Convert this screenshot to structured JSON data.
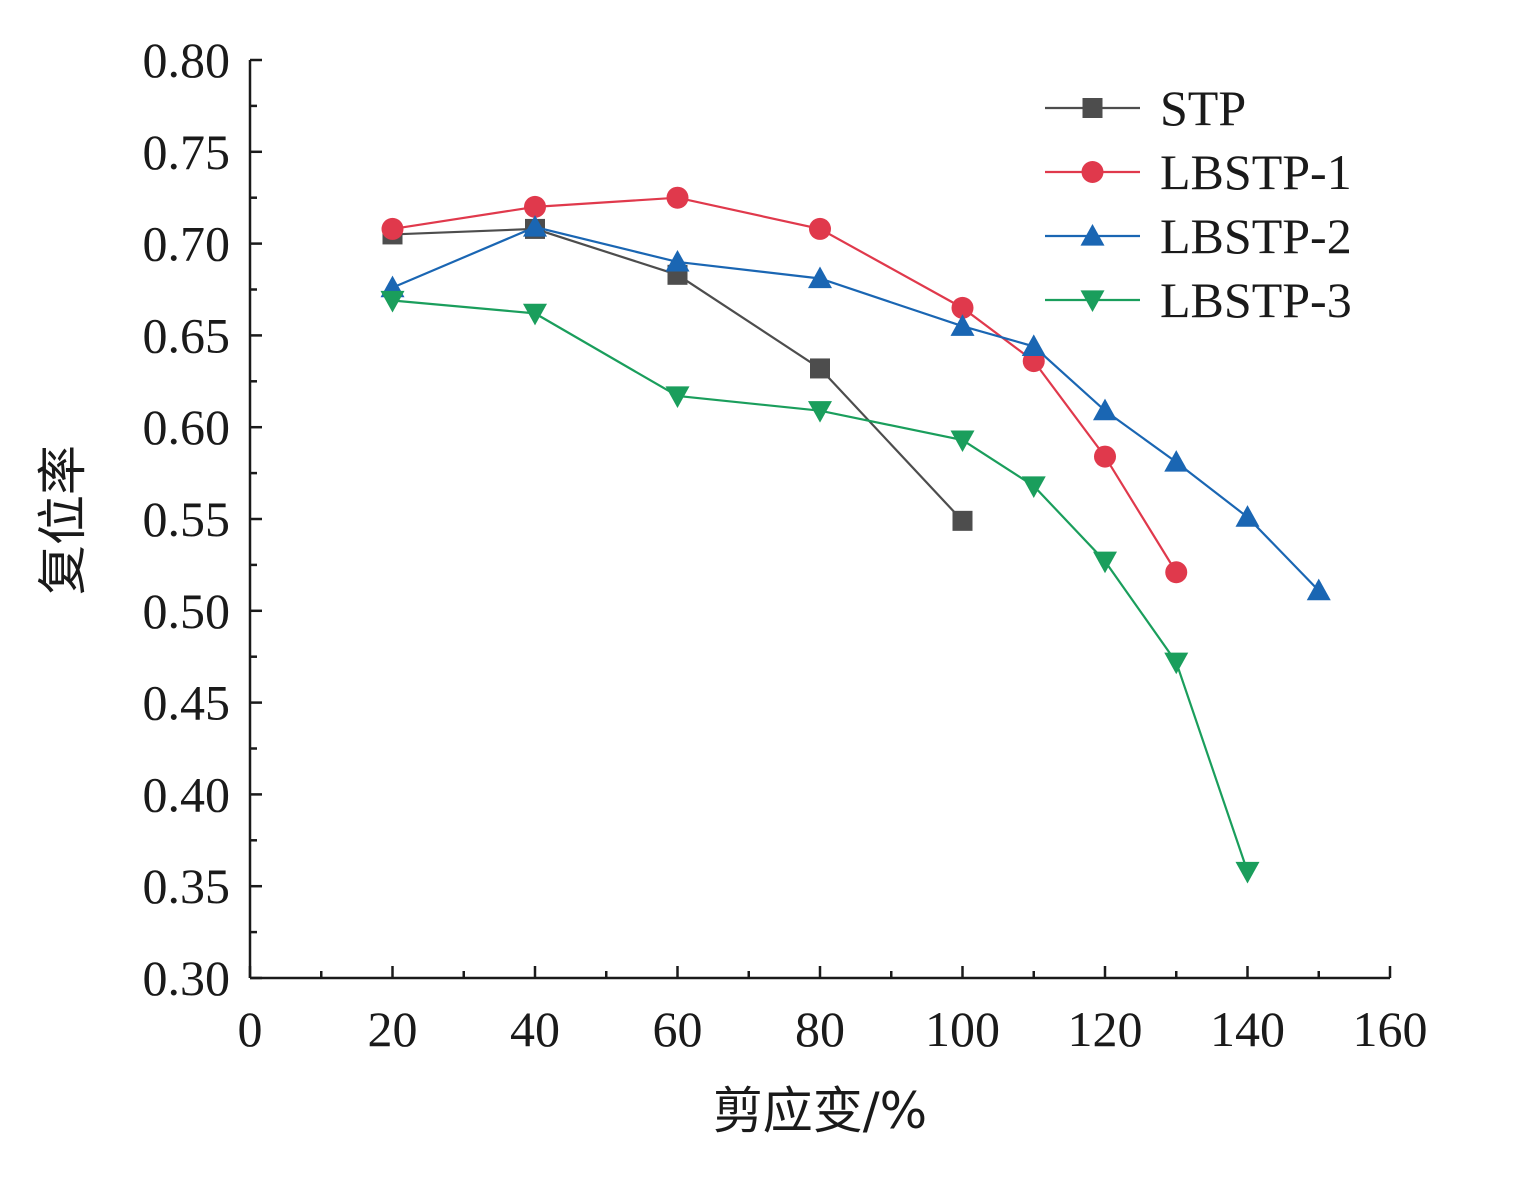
{
  "chart_data": {
    "type": "line",
    "title": "",
    "xlabel": "剪应变/%",
    "ylabel": "复位率",
    "xlim": [
      0,
      160
    ],
    "ylim": [
      0.3,
      0.8
    ],
    "xticks": [
      "0",
      "20",
      "40",
      "60",
      "80",
      "100",
      "120",
      "140",
      "160"
    ],
    "yticks": [
      "0.30",
      "0.35",
      "0.40",
      "0.45",
      "0.50",
      "0.55",
      "0.60",
      "0.65",
      "0.70",
      "0.75",
      "0.80"
    ],
    "grid": false,
    "legend_position": "top-right",
    "series": [
      {
        "name": "STP",
        "color": "#4d4d4d",
        "marker": "square",
        "x": [
          20,
          40,
          60,
          80,
          100
        ],
        "y": [
          0.705,
          0.708,
          0.683,
          0.632,
          0.549
        ]
      },
      {
        "name": "LBSTP-1",
        "color": "#e0394c",
        "marker": "circle",
        "x": [
          20,
          40,
          60,
          80,
          100,
          110,
          120,
          130
        ],
        "y": [
          0.708,
          0.72,
          0.725,
          0.708,
          0.665,
          0.636,
          0.584,
          0.521
        ]
      },
      {
        "name": "LBSTP-2",
        "color": "#1a66b3",
        "marker": "triangle-up",
        "x": [
          20,
          40,
          60,
          80,
          100,
          110,
          120,
          130,
          140,
          150
        ],
        "y": [
          0.676,
          0.709,
          0.69,
          0.681,
          0.655,
          0.644,
          0.609,
          0.581,
          0.551,
          0.511
        ]
      },
      {
        "name": "LBSTP-3",
        "color": "#1a9e5c",
        "marker": "triangle-down",
        "x": [
          20,
          40,
          60,
          80,
          100,
          110,
          120,
          130,
          140
        ],
        "y": [
          0.669,
          0.662,
          0.617,
          0.609,
          0.593,
          0.568,
          0.527,
          0.472,
          0.358
        ]
      }
    ]
  }
}
